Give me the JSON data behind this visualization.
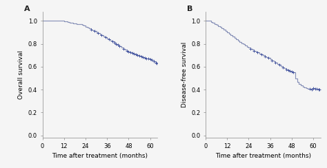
{
  "panel_A": {
    "label": "A",
    "ylabel": "Overall survival",
    "xlabel": "Time after treatment (months)",
    "xlim": [
      0,
      64
    ],
    "ylim": [
      -0.02,
      1.08
    ],
    "yticks": [
      0.0,
      0.2,
      0.4,
      0.6,
      0.8,
      1.0
    ],
    "xticks": [
      0,
      12,
      24,
      36,
      48,
      60
    ],
    "curve_color": "#8892b8",
    "censor_color": "#4455a0",
    "steps": [
      [
        0,
        1.0
      ],
      [
        11,
        1.0
      ],
      [
        12,
        0.995
      ],
      [
        14,
        0.99
      ],
      [
        15,
        0.985
      ],
      [
        17,
        0.98
      ],
      [
        19,
        0.975
      ],
      [
        21,
        0.97
      ],
      [
        22,
        0.965
      ],
      [
        23,
        0.958
      ],
      [
        24,
        0.95
      ],
      [
        25,
        0.942
      ],
      [
        26,
        0.934
      ],
      [
        27,
        0.926
      ],
      [
        28,
        0.918
      ],
      [
        29,
        0.91
      ],
      [
        30,
        0.9
      ],
      [
        31,
        0.892
      ],
      [
        32,
        0.883
      ],
      [
        33,
        0.874
      ],
      [
        34,
        0.865
      ],
      [
        35,
        0.856
      ],
      [
        36,
        0.847
      ],
      [
        37,
        0.838
      ],
      [
        38,
        0.829
      ],
      [
        39,
        0.82
      ],
      [
        40,
        0.81
      ],
      [
        41,
        0.8
      ],
      [
        42,
        0.79
      ],
      [
        43,
        0.779
      ],
      [
        44,
        0.768
      ],
      [
        45,
        0.757
      ],
      [
        46,
        0.748
      ],
      [
        47,
        0.74
      ],
      [
        48,
        0.733
      ],
      [
        49,
        0.726
      ],
      [
        50,
        0.72
      ],
      [
        51,
        0.714
      ],
      [
        52,
        0.708
      ],
      [
        53,
        0.702
      ],
      [
        54,
        0.698
      ],
      [
        55,
        0.692
      ],
      [
        56,
        0.686
      ],
      [
        57,
        0.68
      ],
      [
        58,
        0.674
      ],
      [
        59,
        0.67
      ],
      [
        60,
        0.664
      ],
      [
        61,
        0.658
      ],
      [
        62,
        0.648
      ],
      [
        63,
        0.638
      ],
      [
        63.5,
        0.632
      ]
    ],
    "censor_times": [
      27,
      29,
      31,
      33,
      35,
      37,
      39,
      40,
      41,
      42,
      43,
      45,
      47,
      48,
      49,
      50,
      51,
      52,
      53,
      54,
      55,
      56,
      57,
      58,
      59,
      60,
      61,
      62,
      63,
      63.5
    ]
  },
  "panel_B": {
    "label": "B",
    "ylabel": "Disease-free survival",
    "xlabel": "Time after treatment (months)",
    "xlim": [
      0,
      64
    ],
    "ylim": [
      -0.02,
      1.08
    ],
    "yticks": [
      0.0,
      0.2,
      0.4,
      0.6,
      0.8,
      1.0
    ],
    "xticks": [
      0,
      12,
      24,
      36,
      48,
      60
    ],
    "curve_color": "#8892b8",
    "censor_color": "#4455a0",
    "steps": [
      [
        0,
        1.0
      ],
      [
        2,
        1.0
      ],
      [
        3,
        0.992
      ],
      [
        4,
        0.984
      ],
      [
        5,
        0.975
      ],
      [
        6,
        0.966
      ],
      [
        7,
        0.956
      ],
      [
        8,
        0.946
      ],
      [
        9,
        0.935
      ],
      [
        10,
        0.924
      ],
      [
        11,
        0.913
      ],
      [
        12,
        0.902
      ],
      [
        13,
        0.89
      ],
      [
        14,
        0.878
      ],
      [
        15,
        0.866
      ],
      [
        16,
        0.854
      ],
      [
        17,
        0.842
      ],
      [
        18,
        0.83
      ],
      [
        19,
        0.818
      ],
      [
        20,
        0.806
      ],
      [
        21,
        0.796
      ],
      [
        22,
        0.786
      ],
      [
        23,
        0.776
      ],
      [
        24,
        0.766
      ],
      [
        25,
        0.757
      ],
      [
        26,
        0.748
      ],
      [
        27,
        0.74
      ],
      [
        28,
        0.732
      ],
      [
        29,
        0.724
      ],
      [
        30,
        0.716
      ],
      [
        31,
        0.708
      ],
      [
        32,
        0.7
      ],
      [
        33,
        0.692
      ],
      [
        34,
        0.684
      ],
      [
        35,
        0.676
      ],
      [
        36,
        0.666
      ],
      [
        37,
        0.656
      ],
      [
        38,
        0.646
      ],
      [
        39,
        0.636
      ],
      [
        40,
        0.626
      ],
      [
        41,
        0.616
      ],
      [
        42,
        0.606
      ],
      [
        43,
        0.596
      ],
      [
        44,
        0.587
      ],
      [
        45,
        0.578
      ],
      [
        46,
        0.57
      ],
      [
        47,
        0.562
      ],
      [
        48,
        0.556
      ],
      [
        49,
        0.55
      ],
      [
        50,
        0.5
      ],
      [
        51,
        0.47
      ],
      [
        52,
        0.45
      ],
      [
        53,
        0.435
      ],
      [
        54,
        0.425
      ],
      [
        55,
        0.418
      ],
      [
        56,
        0.413
      ],
      [
        57,
        0.408
      ],
      [
        58,
        0.406
      ],
      [
        59,
        0.404
      ],
      [
        60,
        0.412
      ],
      [
        61,
        0.41
      ],
      [
        62,
        0.408
      ],
      [
        63,
        0.404
      ],
      [
        63.5,
        0.4
      ]
    ],
    "censor_times": [
      25,
      27,
      29,
      31,
      33,
      35,
      37,
      39,
      41,
      43,
      45,
      46,
      47,
      48,
      49,
      58,
      59,
      60,
      61,
      62,
      63,
      63.5
    ]
  },
  "bg_color": "#f5f5f5",
  "axis_color": "#888888",
  "label_fontsize": 6.5,
  "tick_fontsize": 6.0,
  "line_width": 0.85
}
